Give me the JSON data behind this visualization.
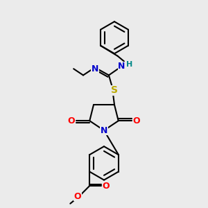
{
  "bg_color": "#ebebeb",
  "atom_colors": {
    "C": "#000000",
    "N": "#0000cc",
    "O": "#ff0000",
    "S": "#bbaa00",
    "H": "#008888"
  },
  "bond_color": "#000000",
  "bond_width": 1.5,
  "figsize": [
    3.0,
    3.0
  ],
  "dpi": 100,
  "xlim": [
    0,
    10
  ],
  "ylim": [
    0,
    13
  ]
}
